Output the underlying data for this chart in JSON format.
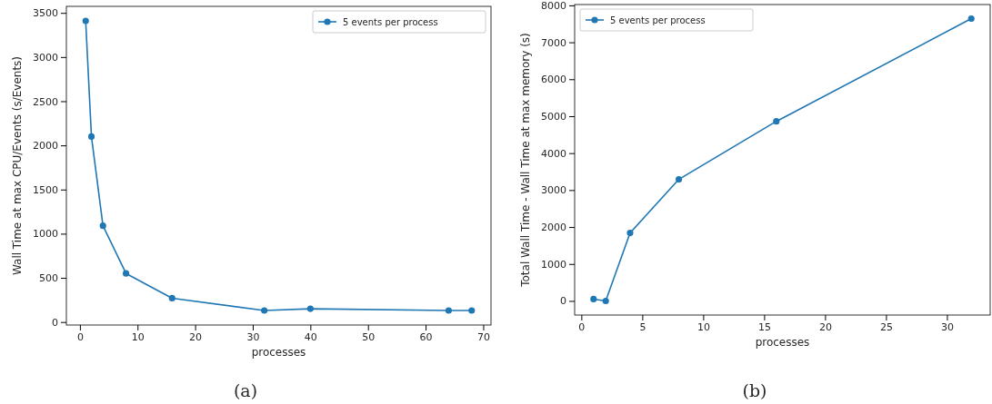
{
  "chart_data": [
    {
      "type": "line",
      "xlabel": "processes",
      "ylabel": "Wall Time at max CPU/Events (s/Events)",
      "x": [
        1,
        2,
        4,
        8,
        16,
        32,
        40,
        64,
        68
      ],
      "series": [
        {
          "name": "5 events per process",
          "color": "#1f77b4",
          "values": [
            3410,
            2100,
            1090,
            550,
            270,
            130,
            150,
            130,
            130
          ]
        }
      ],
      "xlim": [
        -2.35,
        71.35
      ],
      "xticks": [
        0,
        10,
        20,
        30,
        40,
        50,
        60,
        70
      ],
      "ylim": [
        -34,
        3574
      ],
      "yticks": [
        0,
        500,
        1000,
        1500,
        2000,
        2500,
        3000,
        3500
      ],
      "marker": "circle",
      "line_style": "solid",
      "legend": "top right",
      "grid": false,
      "annotations": [
        "(a)"
      ]
    },
    {
      "type": "line",
      "xlabel": "processes",
      "ylabel": "Total Wall Time - Wall Time at max memory (s)",
      "x": [
        1,
        2,
        4,
        8,
        16,
        32
      ],
      "series": [
        {
          "name": "5 events per process",
          "color": "#1f77b4",
          "values": [
            50,
            0,
            1840,
            3290,
            4860,
            7640
          ]
        }
      ],
      "xlim": [
        -0.55,
        33.55
      ],
      "xticks": [
        0,
        5,
        10,
        15,
        20,
        25,
        30
      ],
      "ylim": [
        -382,
        8022
      ],
      "yticks": [
        0,
        1000,
        2000,
        3000,
        4000,
        5000,
        6000,
        7000,
        8000
      ],
      "marker": "circle",
      "line_style": "solid",
      "legend": "top left",
      "grid": false,
      "annotations": [
        "(b)"
      ]
    }
  ]
}
